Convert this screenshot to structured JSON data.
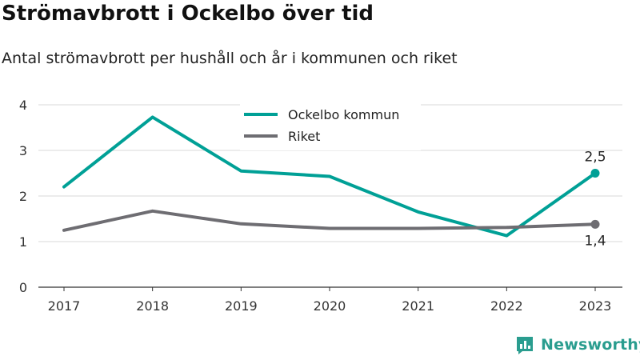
{
  "title": "Strömavbrott i Ockelbo över tid",
  "subtitle": "Antal strömavbrott per hushåll och år i kommunen och riket",
  "brand": {
    "name": "Newsworthy",
    "icon": "newsworthy-logo-icon",
    "color": "#2a9d8f"
  },
  "chart_data": {
    "type": "line",
    "categories": [
      "2017",
      "2018",
      "2019",
      "2020",
      "2021",
      "2022",
      "2023"
    ],
    "series": [
      {
        "name": "Ockelbo kommun",
        "color": "#00a096",
        "values": [
          2.2,
          3.73,
          2.55,
          2.43,
          1.65,
          1.13,
          2.5
        ],
        "last_label": "2,5"
      },
      {
        "name": "Riket",
        "color": "#6e6d72",
        "values": [
          1.25,
          1.67,
          1.39,
          1.29,
          1.29,
          1.31,
          1.38
        ],
        "last_label": "1,4"
      }
    ],
    "yticks": [
      "0",
      "1",
      "2",
      "3",
      "4"
    ],
    "ylim": [
      0,
      4
    ],
    "grid": true,
    "legend_position": "top-center"
  }
}
